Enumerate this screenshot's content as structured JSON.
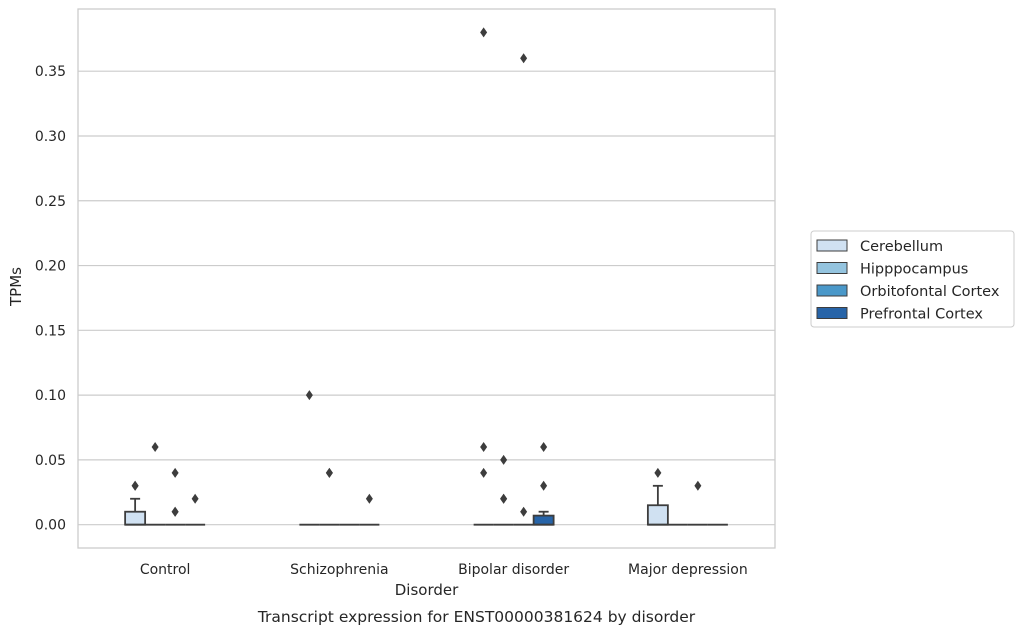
{
  "chart_data": {
    "type": "box",
    "caption": "Transcript expression for ENST00000381624 by disorder",
    "xlabel": "Disorder",
    "ylabel": "TPMs",
    "ylim": [
      -0.018,
      0.398
    ],
    "yticks": [
      0.0,
      0.05,
      0.1,
      0.15,
      0.2,
      0.25,
      0.3,
      0.35
    ],
    "ytick_labels": [
      "0.00",
      "0.05",
      "0.10",
      "0.15",
      "0.20",
      "0.25",
      "0.30",
      "0.35"
    ],
    "categories": [
      "Control",
      "Schizophrenia",
      "Bipolar disorder",
      "Major depression"
    ],
    "grid": "horizontal",
    "legend_position": "right",
    "series": [
      {
        "name": "Cerebellum",
        "color": "#d0e1f2",
        "boxes": [
          {
            "q1": 0.0,
            "median": 0.0,
            "q3": 0.01,
            "whisker_low": 0.0,
            "whisker_high": 0.02,
            "outliers": [
              0.03,
              0.03
            ]
          },
          {
            "q1": 0.0,
            "median": 0.0,
            "q3": 0.0,
            "whisker_low": 0.0,
            "whisker_high": 0.0,
            "outliers": [
              0.1
            ]
          },
          {
            "q1": 0.0,
            "median": 0.0,
            "q3": 0.0,
            "whisker_low": 0.0,
            "whisker_high": 0.0,
            "outliers": [
              0.38,
              0.06,
              0.04
            ]
          },
          {
            "q1": 0.0,
            "median": 0.0,
            "q3": 0.015,
            "whisker_low": 0.0,
            "whisker_high": 0.03,
            "outliers": [
              0.04
            ]
          }
        ]
      },
      {
        "name": "Hipppocampus",
        "color": "#94c4df",
        "boxes": [
          {
            "q1": 0.0,
            "median": 0.0,
            "q3": 0.0,
            "whisker_low": 0.0,
            "whisker_high": 0.0,
            "outliers": [
              0.06
            ]
          },
          {
            "q1": 0.0,
            "median": 0.0,
            "q3": 0.0,
            "whisker_low": 0.0,
            "whisker_high": 0.0,
            "outliers": [
              0.04,
              0.04
            ]
          },
          {
            "q1": 0.0,
            "median": 0.0,
            "q3": 0.0,
            "whisker_low": 0.0,
            "whisker_high": 0.0,
            "outliers": [
              0.05,
              0.02,
              0.02
            ]
          },
          {
            "q1": 0.0,
            "median": 0.0,
            "q3": 0.0,
            "whisker_low": 0.0,
            "whisker_high": 0.0,
            "outliers": []
          }
        ]
      },
      {
        "name": "Orbitofontal Cortex",
        "color": "#4a98c9",
        "boxes": [
          {
            "q1": 0.0,
            "median": 0.0,
            "q3": 0.0,
            "whisker_low": 0.0,
            "whisker_high": 0.0,
            "outliers": [
              0.04,
              0.01,
              0.01
            ]
          },
          {
            "q1": 0.0,
            "median": 0.0,
            "q3": 0.0,
            "whisker_low": 0.0,
            "whisker_high": 0.0,
            "outliers": []
          },
          {
            "q1": 0.0,
            "median": 0.0,
            "q3": 0.0,
            "whisker_low": 0.0,
            "whisker_high": 0.0,
            "outliers": [
              0.36,
              0.01
            ]
          },
          {
            "q1": 0.0,
            "median": 0.0,
            "q3": 0.0,
            "whisker_low": 0.0,
            "whisker_high": 0.0,
            "outliers": [
              0.03
            ]
          }
        ]
      },
      {
        "name": "Prefrontal Cortex",
        "color": "#2764a8",
        "boxes": [
          {
            "q1": 0.0,
            "median": 0.0,
            "q3": 0.0,
            "whisker_low": 0.0,
            "whisker_high": 0.0,
            "outliers": [
              0.02
            ]
          },
          {
            "q1": 0.0,
            "median": 0.0,
            "q3": 0.0,
            "whisker_low": 0.0,
            "whisker_high": 0.0,
            "outliers": [
              0.02
            ]
          },
          {
            "q1": 0.0,
            "median": 0.0,
            "q3": 0.007,
            "whisker_low": 0.0,
            "whisker_high": 0.01,
            "outliers": [
              0.06,
              0.03
            ]
          },
          {
            "q1": 0.0,
            "median": 0.0,
            "q3": 0.0,
            "whisker_low": 0.0,
            "whisker_high": 0.0,
            "outliers": []
          }
        ]
      }
    ]
  }
}
